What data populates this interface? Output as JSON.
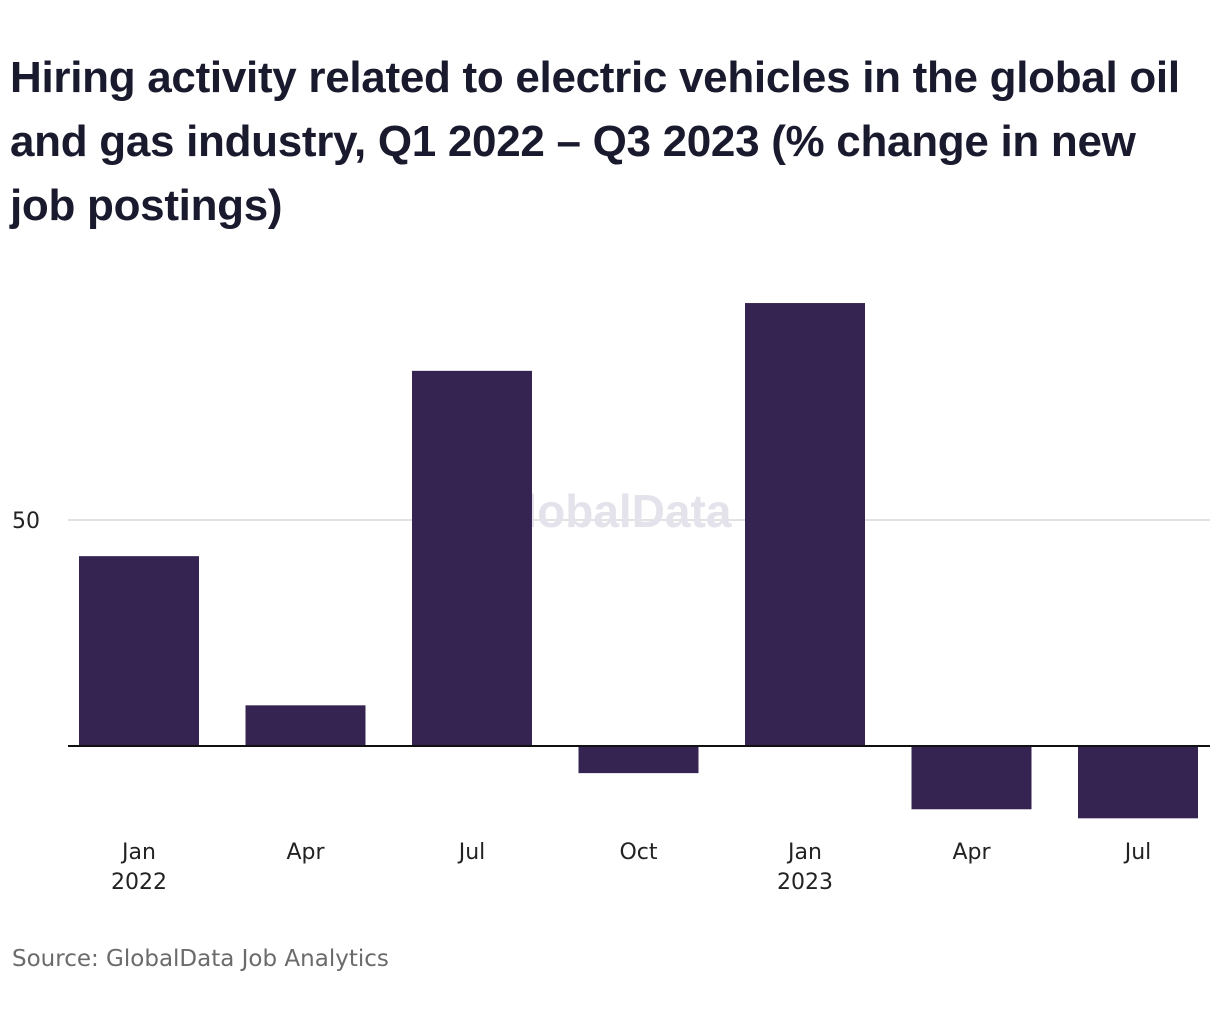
{
  "chart_data": {
    "type": "bar",
    "title": "Hiring activity related to electric vehicles in the global oil and gas industry, Q1 2022 – Q3 2023 (% change in new job postings)",
    "categories": [
      "Jan 2022",
      "Apr",
      "Jul",
      "Oct",
      "Jan 2023",
      "Apr",
      "Jul"
    ],
    "category_lines": [
      [
        "Jan",
        "2022"
      ],
      [
        "Apr"
      ],
      [
        "Jul"
      ],
      [
        "Oct"
      ],
      [
        "Jan",
        "2023"
      ],
      [
        "Apr"
      ],
      [
        "Jul"
      ]
    ],
    "values": [
      42,
      9,
      83,
      -6,
      98,
      -14,
      -16
    ],
    "ylim": [
      -20,
      105
    ],
    "yticks": [
      50
    ],
    "ytick_labels": [
      "50"
    ],
    "xlabel": "",
    "ylabel": "",
    "grid": true,
    "bar_color": "#352451",
    "watermark": "GlobalData",
    "source": "Source: GlobalData Job Analytics"
  }
}
